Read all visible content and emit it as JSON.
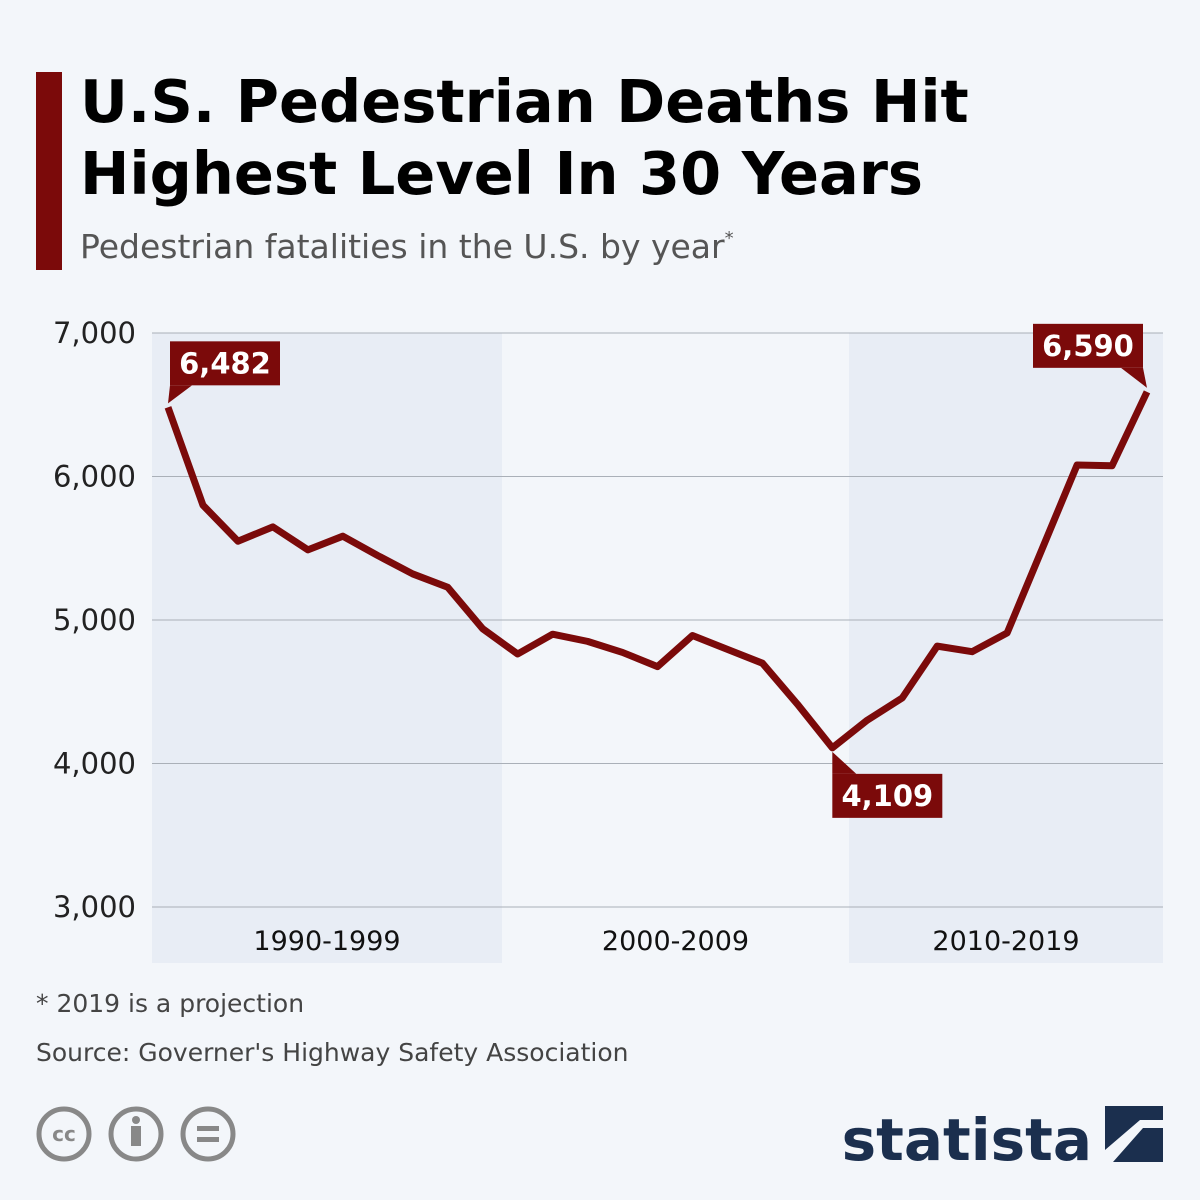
{
  "chart_data": {
    "type": "line",
    "title": "U.S. Pedestrian Deaths Hit Highest Level In 30 Years",
    "subtitle": "Pedestrian fatalities in the U.S. by year",
    "subtitle_mark": "*",
    "categories": [
      null,
      null,
      null,
      null,
      null,
      null,
      null,
      null,
      null,
      null,
      null,
      null,
      null,
      null,
      null,
      null,
      null,
      null,
      null,
      null,
      null,
      null,
      null,
      null,
      null,
      null,
      null,
      null,
      null
    ],
    "values": [
      6482,
      5800,
      5549,
      5649,
      5489,
      5584,
      5449,
      5321,
      5228,
      4939,
      4763,
      4901,
      4851,
      4774,
      4675,
      4892,
      4795,
      4699,
      4414,
      4109,
      4302,
      4457,
      4818,
      4779,
      4910,
      5495,
      6080,
      6075,
      6590
    ],
    "value_labels": [
      "6,482",
      null,
      null,
      null,
      null,
      null,
      null,
      null,
      null,
      null,
      null,
      null,
      null,
      null,
      null,
      null,
      null,
      null,
      null,
      "4,109",
      null,
      null,
      null,
      null,
      null,
      null,
      null,
      null,
      "6,590"
    ],
    "bands": [
      "1990-1999",
      "2000-2009",
      "2010-2019"
    ],
    "color": "#7b0a0a",
    "ylim": [
      3000,
      7000
    ],
    "yticks": [
      {
        "value": 3000,
        "label": "3,000"
      },
      {
        "value": 4000,
        "label": "4,000"
      },
      {
        "value": 5000,
        "label": "5,000"
      },
      {
        "value": 6000,
        "label": "6,000"
      },
      {
        "value": 7000,
        "label": "7,000"
      }
    ],
    "grid": true,
    "note": "* 2019 is a projection",
    "source": "Source: Governer's Highway Safety Association",
    "brand": "statista"
  }
}
